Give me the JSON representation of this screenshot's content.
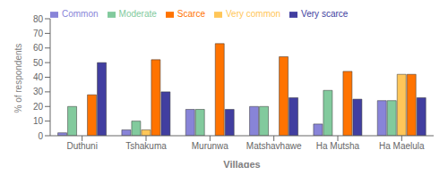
{
  "chart_data": {
    "type": "bar",
    "categories": [
      "Duthuni",
      "Tshakuma",
      "Murunwa",
      "Matshavhawe",
      "Ha Mutsha",
      "Ha Maelula"
    ],
    "series": [
      {
        "name": "Common",
        "color": "#8884d8",
        "values": [
          2,
          4,
          18,
          20,
          8,
          24
        ]
      },
      {
        "name": "Moderate",
        "color": "#82ca9d",
        "values": [
          20,
          10,
          18,
          20,
          31,
          24
        ]
      },
      {
        "name": "Very common",
        "color": "#ffc658",
        "values": [
          0,
          4,
          0,
          0,
          0,
          42
        ]
      },
      {
        "name": "Scarce",
        "color": "#ff7300",
        "values": [
          28,
          52,
          63,
          54,
          44,
          42
        ]
      },
      {
        "name": "Very scarce",
        "color": "#413ea0",
        "values": [
          50,
          30,
          18,
          26,
          25,
          26
        ]
      }
    ],
    "ylim": [
      0,
      80
    ],
    "yticks": [
      0,
      10,
      20,
      30,
      40,
      50,
      60,
      70,
      80
    ],
    "ylabel": "% of respondents",
    "xlabel": "Villages",
    "legend": "upper left",
    "grid": false
  }
}
